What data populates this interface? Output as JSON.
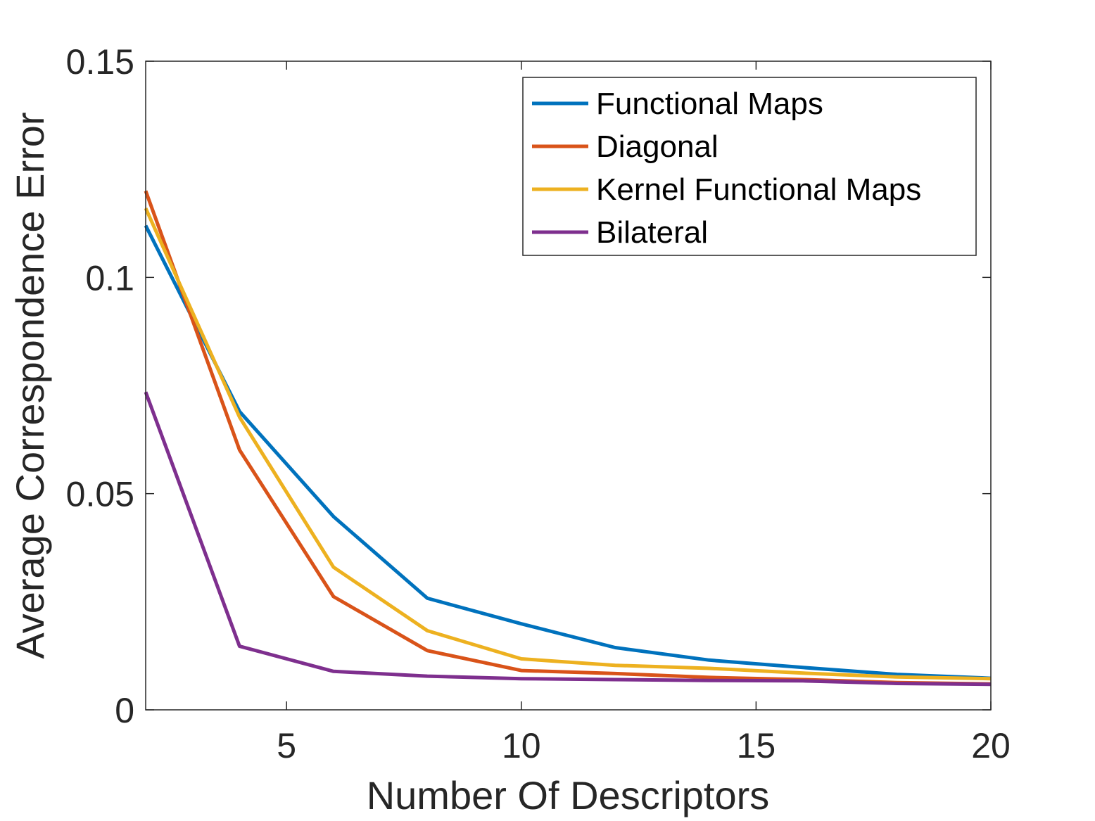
{
  "chart_data": {
    "type": "line",
    "title": "",
    "xlabel": "Number Of Descriptors",
    "ylabel": "Average Correspondence Error",
    "xlim": [
      2,
      20
    ],
    "ylim": [
      0,
      0.15
    ],
    "xticks": [
      5,
      10,
      15,
      20
    ],
    "xtick_labels": [
      "5",
      "10",
      "15",
      "20"
    ],
    "yticks": [
      0,
      0.05,
      0.1,
      0.15
    ],
    "ytick_labels": [
      "0",
      "0.05",
      "0.1",
      "0.15"
    ],
    "grid": false,
    "legend_position": "top-right",
    "x": [
      2,
      4,
      6,
      8,
      10,
      12,
      14,
      16,
      18,
      20
    ],
    "series": [
      {
        "name": "Functional Maps",
        "color": "#0072BD",
        "values": [
          0.112,
          0.069,
          0.0447,
          0.0258,
          0.0199,
          0.0144,
          0.0115,
          0.0098,
          0.0082,
          0.0073
        ]
      },
      {
        "name": "Diagonal",
        "color": "#D95319",
        "values": [
          0.12,
          0.0601,
          0.0262,
          0.0137,
          0.0091,
          0.0084,
          0.0075,
          0.007,
          0.0063,
          0.006
        ]
      },
      {
        "name": "Kernel Functional Maps",
        "color": "#EDB120",
        "values": [
          0.116,
          0.0677,
          0.033,
          0.0183,
          0.0118,
          0.0103,
          0.0096,
          0.0085,
          0.0076,
          0.0072
        ]
      },
      {
        "name": "Bilateral",
        "color": "#7E2F8E",
        "values": [
          0.0735,
          0.0147,
          0.0089,
          0.0078,
          0.0072,
          0.007,
          0.0068,
          0.0067,
          0.0061,
          0.0059
        ]
      }
    ]
  }
}
